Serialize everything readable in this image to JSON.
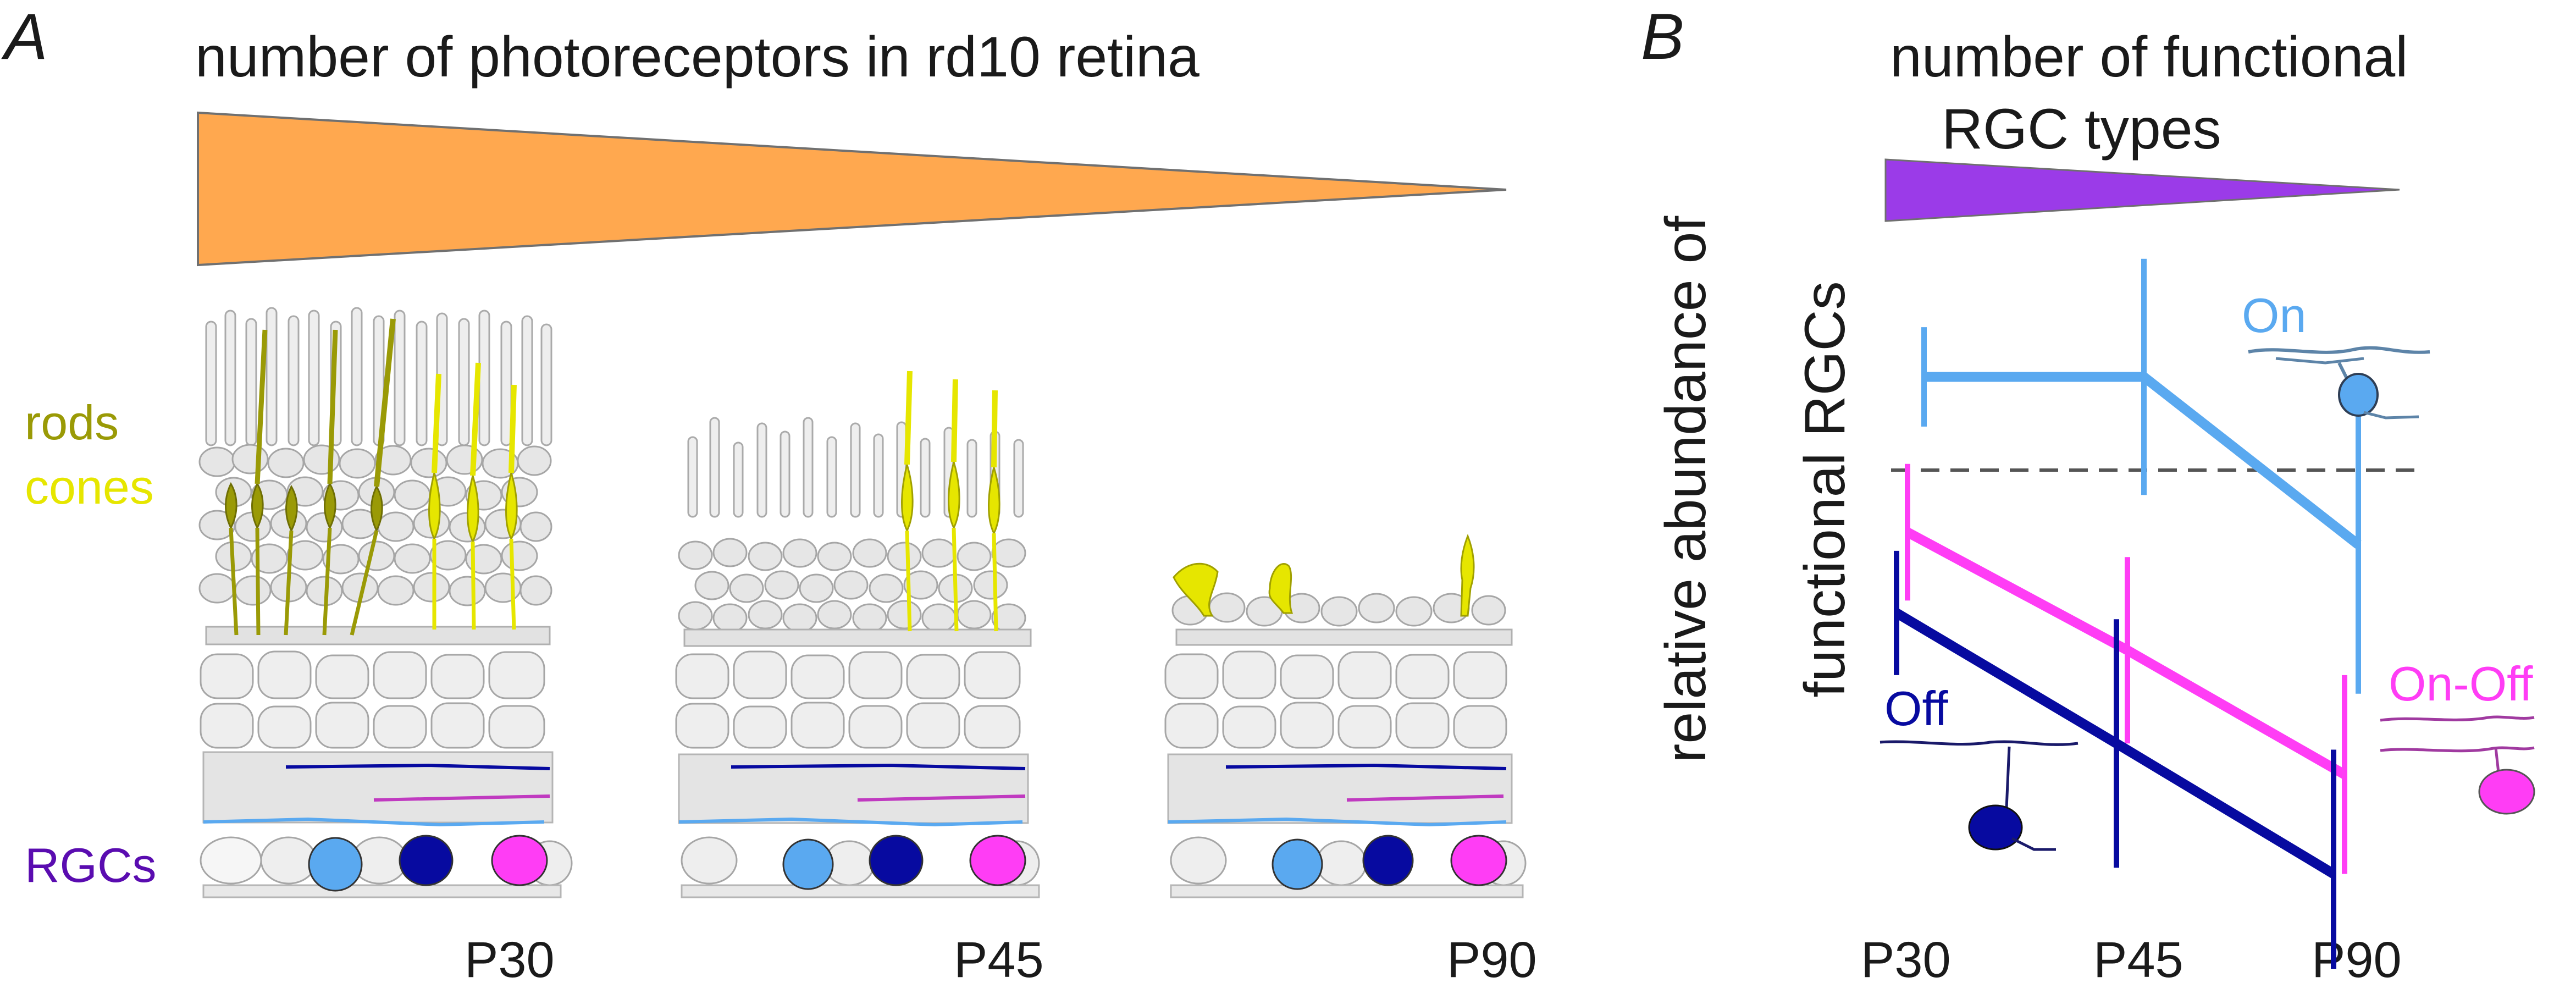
{
  "panel_a": {
    "letter": "A",
    "title": "number of photoreceptors in rd10 retina",
    "labels": {
      "rods": "rods",
      "cones": "cones",
      "rgcs": "RGCs"
    },
    "stages": [
      "P30",
      "P45",
      "P90"
    ]
  },
  "panel_b": {
    "letter": "B",
    "title_line1": "number of functional",
    "title_line2": "RGC types",
    "ylabel_line1": "relative abundance of",
    "ylabel_line2": "functional RGCs",
    "categories": [
      "P30",
      "P45",
      "P90"
    ],
    "series_labels": {
      "on": "On",
      "off": "Off",
      "onoff": "On-Off"
    }
  },
  "chart_data": {
    "type": "line",
    "categories": [
      "P30",
      "P45",
      "P90"
    ],
    "xlabel": "",
    "ylabel": "relative abundance of functional RGCs",
    "reference_line": 1.0,
    "ylim": [
      0.3,
      1.5
    ],
    "series": [
      {
        "name": "On",
        "values": [
          1.15,
          1.15,
          0.88
        ],
        "err": [
          0.08,
          0.19,
          0.24
        ]
      },
      {
        "name": "On-Off",
        "values": [
          0.9,
          0.71,
          0.51
        ],
        "err": [
          0.11,
          0.15,
          0.16
        ]
      },
      {
        "name": "Off",
        "values": [
          0.77,
          0.56,
          0.35
        ],
        "err": [
          0.1,
          0.2,
          0.2
        ]
      }
    ]
  },
  "colors": {
    "orange_wedge": "#ffa84f",
    "purple_wedge": "#9b3be8",
    "on": "#5aa9f0",
    "onoff": "#ff3df5",
    "off": "#070aa0",
    "rods": "#9a9a06",
    "cones": "#e6e600",
    "rgc_label": "#5a0cb0",
    "tissue_fill": "#ececec",
    "tissue_line": "#a6a6a6"
  }
}
